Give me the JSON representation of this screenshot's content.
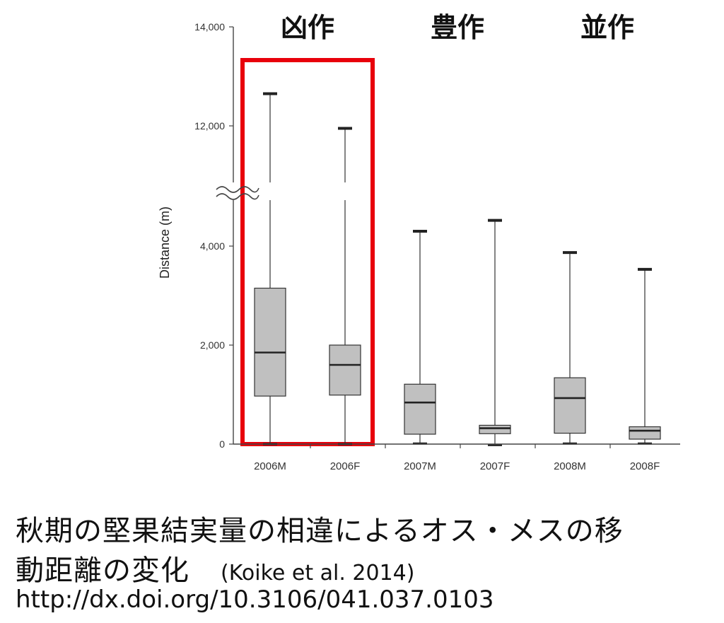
{
  "chart_data": {
    "type": "box",
    "ylabel": "Distance (m)",
    "yticks": [
      {
        "value": 0,
        "label": "0"
      },
      {
        "value": 2000,
        "label": "2,000"
      },
      {
        "value": 4000,
        "label": "4,000"
      },
      {
        "value": 12000,
        "label": "12,000"
      },
      {
        "value": 14000,
        "label": "14,000"
      }
    ],
    "axis_break": [
      4800,
      11000
    ],
    "ylim": [
      0,
      14000
    ],
    "categories": [
      "2006M",
      "2006F",
      "2007M",
      "2007F",
      "2008M",
      "2008F"
    ],
    "groups": [
      {
        "label": "凶作",
        "categories": [
          "2006M",
          "2006F"
        ],
        "highlight": true,
        "highlight_color": "#e8000b"
      },
      {
        "label": "豊作",
        "categories": [
          "2007M",
          "2007F"
        ],
        "highlight": false
      },
      {
        "label": "並作",
        "categories": [
          "2008M",
          "2008F"
        ],
        "highlight": false
      }
    ],
    "boxes": [
      {
        "category": "2006M",
        "min": 0,
        "q1": 970,
        "median": 1850,
        "q3": 3150,
        "max": 12650
      },
      {
        "category": "2006F",
        "min": 0,
        "q1": 990,
        "median": 1600,
        "q3": 2000,
        "max": 11950
      },
      {
        "category": "2007M",
        "min": 10,
        "q1": 200,
        "median": 840,
        "q3": 1210,
        "max": 4300
      },
      {
        "category": "2007F",
        "min": -20,
        "q1": 210,
        "median": 320,
        "q3": 380,
        "max": 4520
      },
      {
        "category": "2008M",
        "min": 10,
        "q1": 220,
        "median": 930,
        "q3": 1340,
        "max": 3870
      },
      {
        "category": "2008F",
        "min": 10,
        "q1": 100,
        "median": 270,
        "q3": 350,
        "max": 3530
      }
    ],
    "box_color": "#c0c0c0"
  },
  "caption": {
    "line1": "秋期の堅果結実量の相違によるオス・メスの移",
    "line2": "動距離の変化",
    "citation": "(Koike et al. 2014)",
    "url": "http://dx.doi.org/10.3106/041.037.0103"
  }
}
